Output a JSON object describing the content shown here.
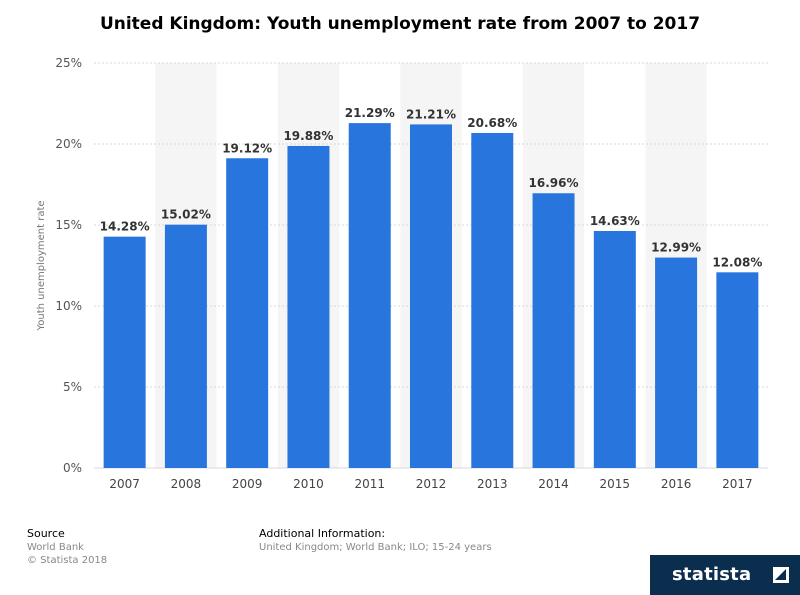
{
  "chart_data": {
    "type": "bar",
    "title": "United Kingdom: Youth unemployment rate from 2007 to 2017",
    "ylabel": "Youth unemployment rate",
    "xlabel": "",
    "categories": [
      "2007",
      "2008",
      "2009",
      "2010",
      "2011",
      "2012",
      "2013",
      "2014",
      "2015",
      "2016",
      "2017"
    ],
    "values": [
      14.28,
      15.02,
      19.12,
      19.88,
      21.29,
      21.21,
      20.68,
      16.96,
      14.63,
      12.99,
      12.08
    ],
    "value_labels": [
      "14.28%",
      "15.02%",
      "19.12%",
      "19.88%",
      "21.29%",
      "21.21%",
      "20.68%",
      "16.96%",
      "14.63%",
      "12.99%",
      "12.08%"
    ],
    "ylim": [
      0,
      25
    ],
    "yticks": [
      0,
      5,
      10,
      15,
      20,
      25
    ],
    "ytick_labels": [
      "0%",
      "5%",
      "10%",
      "15%",
      "20%",
      "25%"
    ],
    "grid": true,
    "colors": {
      "bar": "#2876dd",
      "stripe": "#f5f5f5",
      "grid": "#d8d8d8"
    }
  },
  "footer": {
    "source_label": "Source",
    "source_lines": [
      "World Bank",
      "© Statista 2018"
    ],
    "info_label": "Additional Information:",
    "info_text": "United Kingdom; World Bank; ILO; 15-24 years"
  },
  "brand": {
    "logo_text": "statista",
    "logo_icon": "statista-logo-icon",
    "logo_bg": "#0b2d4e"
  }
}
